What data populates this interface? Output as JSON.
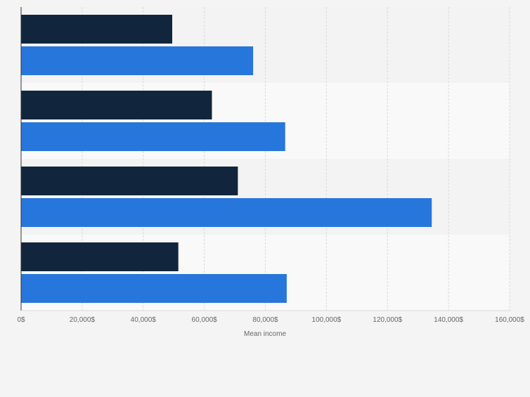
{
  "colors": {
    "series_dark": "#11263d",
    "series_blue": "#2776dc",
    "band_odd": "#f3f3f3",
    "band_even": "#f9f9f9",
    "grid": "#d9d9d9",
    "axis": "#333333",
    "tick_text": "#666666"
  },
  "chart_data": {
    "type": "bar",
    "orientation": "horizontal",
    "categories": [
      "",
      "",
      "",
      ""
    ],
    "series": [
      {
        "values": [
          49500,
          62500,
          71000,
          51500
        ]
      },
      {
        "values": [
          76000,
          86500,
          134500,
          87000
        ]
      }
    ],
    "title": "",
    "xlabel": "Mean income",
    "ylabel": "",
    "xlim": [
      0,
      160000
    ],
    "xticks": [
      0,
      20000,
      40000,
      60000,
      80000,
      100000,
      120000,
      140000,
      160000
    ],
    "xtick_labels": [
      "0$",
      "20,000$",
      "40,000$",
      "60,000$",
      "80,000$",
      "100,000$",
      "120,000$",
      "140,000$",
      "160,000$"
    ],
    "grid": true,
    "legend": "none"
  }
}
